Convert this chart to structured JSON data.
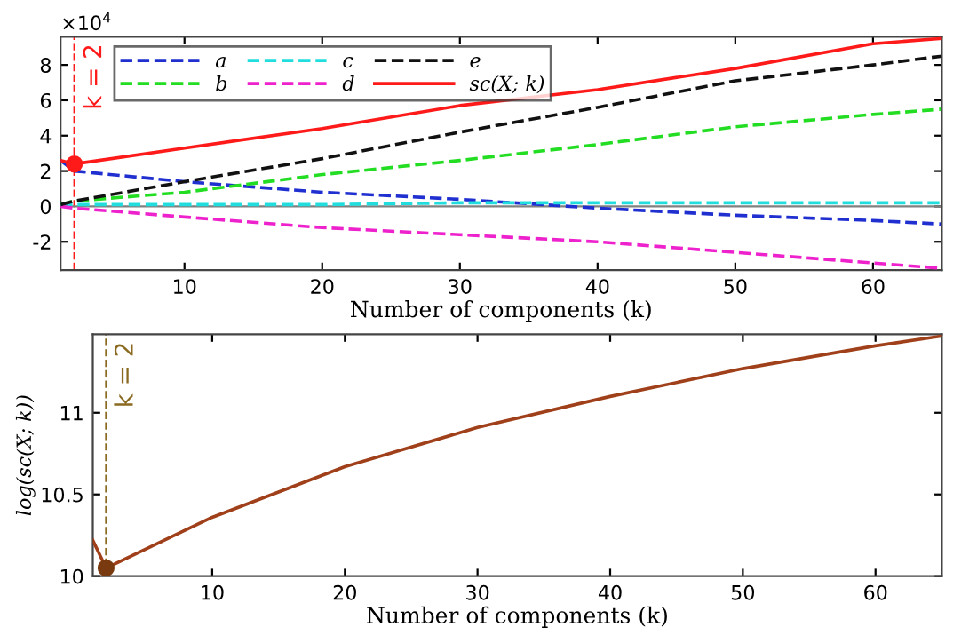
{
  "chart_data": [
    {
      "type": "line",
      "xlabel": "Number of components (k)",
      "x": [
        1,
        2,
        10,
        20,
        30,
        40,
        50,
        60,
        65
      ],
      "xlim": [
        1,
        65
      ],
      "xticks": [
        10,
        20,
        30,
        40,
        50,
        60
      ],
      "ylim": [
        -3.6,
        9.6
      ],
      "yticks": [
        -2,
        0,
        2,
        4,
        6,
        8
      ],
      "annotations": [
        "×10$^{4}$"
      ],
      "legend": "top left",
      "grid": false,
      "series": [
        {
          "name": "a",
          "color": "#1f2fd0",
          "line_style": "dashed",
          "values": [
            2.6,
            2.0,
            1.4,
            0.8,
            0.4,
            -0.1,
            -0.5,
            -0.8,
            -1.0
          ]
        },
        {
          "name": "b",
          "color": "#22dd22",
          "line_style": "dashed",
          "values": [
            0.1,
            0.3,
            0.8,
            1.8,
            2.6,
            3.5,
            4.5,
            5.2,
            5.5
          ]
        },
        {
          "name": "c",
          "color": "#22dddd",
          "line_style": "dashed",
          "values": [
            0.1,
            0.1,
            0.1,
            0.1,
            0.2,
            0.2,
            0.2,
            0.2,
            0.2
          ]
        },
        {
          "name": "d",
          "color": "#ee22cc",
          "line_style": "dashed",
          "values": [
            0.0,
            -0.1,
            -0.6,
            -1.2,
            -1.6,
            -2.0,
            -2.6,
            -3.2,
            -3.5
          ]
        },
        {
          "name": "e",
          "color": "#111111",
          "line_style": "dashed",
          "values": [
            0.1,
            0.3,
            1.4,
            2.7,
            4.2,
            5.6,
            7.1,
            8.0,
            8.5
          ]
        },
        {
          "name": "sc(X; k)",
          "color": "#ff1a1a",
          "line_style": "solid",
          "values": [
            2.6,
            2.4,
            3.3,
            4.4,
            5.7,
            6.6,
            7.8,
            9.2,
            9.5
          ]
        },
        {
          "type": "scatter",
          "x": [
            2
          ],
          "color": "#ff1a1a",
          "marker": "circle",
          "values": [
            2.4
          ]
        }
      ],
      "ref_lines": [
        {
          "axis": "x",
          "value": 2,
          "label": "k = 2",
          "color": "#ff1a1a",
          "line_style": "dashed"
        },
        {
          "axis": "y",
          "value": 0,
          "label": null,
          "color": "#808080",
          "line_style": "solid"
        }
      ]
    },
    {
      "type": "line",
      "xlabel": "Number of components (k)",
      "ylabel": "log(sc(X; k))",
      "x": [
        1,
        2,
        10,
        20,
        30,
        40,
        50,
        60,
        65
      ],
      "xlim": [
        1,
        65
      ],
      "xticks": [
        10,
        20,
        30,
        40,
        50,
        60
      ],
      "ylim": [
        10,
        11.48
      ],
      "yticks": [
        10,
        10.5,
        11
      ],
      "grid": false,
      "series": [
        {
          "color": "#a0401a",
          "line_style": "solid",
          "values": [
            10.22,
            10.05,
            10.36,
            10.67,
            10.91,
            11.1,
            11.27,
            11.41,
            11.47
          ]
        },
        {
          "type": "scatter",
          "x": [
            2
          ],
          "color": "#7a3a10",
          "marker": "circle",
          "values": [
            10.05
          ]
        }
      ],
      "ref_lines": [
        {
          "axis": "x",
          "value": 2,
          "label": "k = 2",
          "color": "#8a6a20",
          "line_style": "dashed"
        }
      ]
    }
  ]
}
